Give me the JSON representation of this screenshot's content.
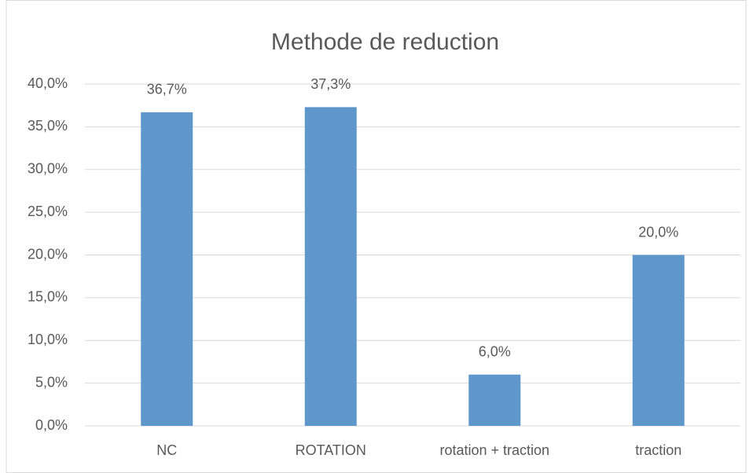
{
  "chart_data": {
    "type": "bar",
    "title": "Methode de reduction",
    "categories": [
      "NC",
      "ROTATION",
      "rotation + traction",
      "traction"
    ],
    "values": [
      36.7,
      37.3,
      6.0,
      20.0
    ],
    "value_labels": [
      "36,7%",
      "37,3%",
      "6,0%",
      "20,0%"
    ],
    "color": "#5f97cb",
    "ylim": [
      0,
      40
    ],
    "yticks": [
      {
        "value": 0,
        "label": "0,0%"
      },
      {
        "value": 5,
        "label": "5,0%"
      },
      {
        "value": 10,
        "label": "10,0%"
      },
      {
        "value": 15,
        "label": "15,0%"
      },
      {
        "value": 20,
        "label": "20,0%"
      },
      {
        "value": 25,
        "label": "25,0%"
      },
      {
        "value": 30,
        "label": "30,0%"
      },
      {
        "value": 35,
        "label": "35,0%"
      },
      {
        "value": 40,
        "label": "40,0%"
      }
    ],
    "grid": true
  }
}
